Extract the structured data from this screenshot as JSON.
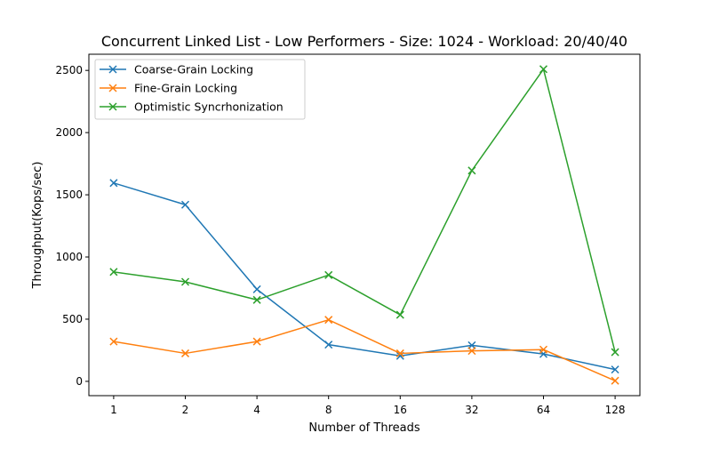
{
  "chart_data": {
    "type": "line",
    "title": "Concurrent Linked List - Low Performers - Size: 1024 - Workload: 20/40/40",
    "xlabel": "Number of Threads",
    "ylabel": "Throughput(Kops/sec)",
    "categories": [
      "1",
      "2",
      "4",
      "8",
      "16",
      "32",
      "64",
      "128"
    ],
    "ylim": [
      -115,
      2630
    ],
    "yticks": [
      0,
      500,
      1000,
      1500,
      2000,
      2500
    ],
    "grid": false,
    "legend_position": "top-left",
    "series": [
      {
        "name": "Coarse-Grain Locking",
        "color": "#1f77b4",
        "marker": "x",
        "values": [
          1595,
          1420,
          740,
          295,
          205,
          290,
          220,
          95
        ]
      },
      {
        "name": "Fine-Grain Locking",
        "color": "#ff7f0e",
        "marker": "x",
        "values": [
          320,
          225,
          320,
          495,
          225,
          245,
          255,
          5
        ]
      },
      {
        "name": "Optimistic Syncrhonization",
        "color": "#2ca02c",
        "marker": "x",
        "values": [
          880,
          800,
          655,
          855,
          535,
          1695,
          2510,
          235
        ]
      }
    ]
  }
}
